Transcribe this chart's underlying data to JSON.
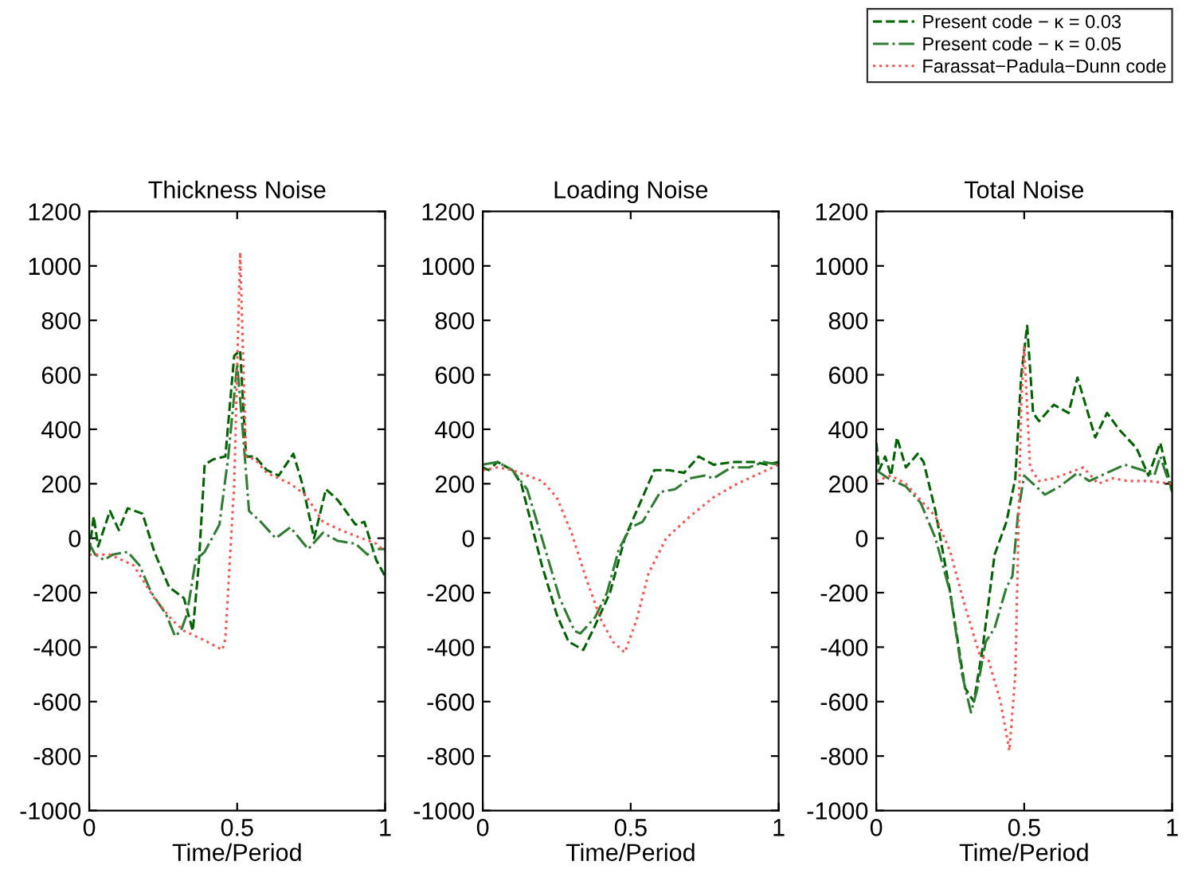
{
  "chart_data": [
    {
      "type": "line",
      "title": "Thickness Noise",
      "xlabel": "Time/Period",
      "xlim": [
        0,
        1
      ],
      "xticks": [
        0,
        0.5,
        1
      ],
      "ylim": [
        -1000,
        1200
      ],
      "yticks": [
        -1000,
        -800,
        -600,
        -400,
        -200,
        0,
        200,
        400,
        600,
        800,
        1000,
        1200
      ],
      "grid": false,
      "legend": "top right",
      "series": [
        {
          "name": "Present code − κ = 0.03",
          "color": "#006400",
          "line_style": "dashed",
          "x": [
            0,
            0.015,
            0.03,
            0.07,
            0.1,
            0.13,
            0.18,
            0.22,
            0.27,
            0.32,
            0.35,
            0.37,
            0.39,
            0.42,
            0.46,
            0.49,
            0.51,
            0.53,
            0.56,
            0.6,
            0.64,
            0.69,
            0.72,
            0.76,
            0.8,
            0.84,
            0.9,
            0.93,
            0.97,
            1.0
          ],
          "values": [
            -50,
            80,
            -30,
            100,
            30,
            110,
            90,
            -50,
            -180,
            -220,
            -340,
            -100,
            270,
            290,
            300,
            670,
            690,
            300,
            300,
            250,
            230,
            310,
            200,
            0,
            180,
            140,
            50,
            60,
            -80,
            -140
          ]
        },
        {
          "name": "Present code − κ = 0.05",
          "color": "#2e7d32",
          "line_style": "dashdot",
          "x": [
            0,
            0.02,
            0.05,
            0.08,
            0.13,
            0.17,
            0.21,
            0.26,
            0.29,
            0.31,
            0.33,
            0.36,
            0.39,
            0.44,
            0.47,
            0.5,
            0.52,
            0.54,
            0.58,
            0.63,
            0.68,
            0.74,
            0.79,
            0.84,
            0.9,
            0.94,
            0.97,
            1.0
          ],
          "values": [
            -20,
            -60,
            -80,
            -60,
            -50,
            -100,
            -200,
            -280,
            -360,
            -340,
            -280,
            -80,
            -50,
            50,
            300,
            640,
            380,
            100,
            60,
            0,
            40,
            -40,
            20,
            -10,
            -20,
            -60,
            -40,
            -40
          ]
        },
        {
          "name": "Farassat−Padula−Dunn code",
          "color": "#ff5050",
          "line_style": "dotted",
          "x": [
            0,
            0.07,
            0.15,
            0.22,
            0.28,
            0.32,
            0.38,
            0.45,
            0.46,
            0.49,
            0.51,
            0.53,
            0.56,
            0.6,
            0.68,
            0.73,
            0.79,
            0.85,
            0.92,
            0.97,
            1.0
          ],
          "values": [
            -60,
            -60,
            -100,
            -220,
            -300,
            -340,
            -370,
            -410,
            -370,
            200,
            1050,
            300,
            290,
            240,
            200,
            160,
            60,
            30,
            0,
            -20,
            -50
          ]
        }
      ]
    },
    {
      "type": "line",
      "title": "Loading Noise",
      "xlabel": "Time/Period",
      "xlim": [
        0,
        1
      ],
      "xticks": [
        0,
        0.5,
        1
      ],
      "ylim": [
        -1000,
        1200
      ],
      "yticks": [
        -1000,
        -800,
        -600,
        -400,
        -200,
        0,
        200,
        400,
        600,
        800,
        1000,
        1200
      ],
      "grid": false,
      "series": [
        {
          "color": "#006400",
          "line_style": "dashed",
          "x": [
            0,
            0.02,
            0.05,
            0.1,
            0.13,
            0.2,
            0.25,
            0.29,
            0.34,
            0.38,
            0.43,
            0.48,
            0.52,
            0.58,
            0.63,
            0.68,
            0.73,
            0.78,
            0.85,
            0.92,
            0.96,
            1.0
          ],
          "values": [
            260,
            250,
            280,
            250,
            200,
            -100,
            -280,
            -380,
            -410,
            -320,
            -200,
            0,
            100,
            250,
            250,
            240,
            300,
            270,
            280,
            280,
            270,
            280
          ]
        },
        {
          "color": "#2e7d32",
          "line_style": "dashdot",
          "x": [
            0,
            0.05,
            0.1,
            0.15,
            0.2,
            0.26,
            0.31,
            0.33,
            0.38,
            0.42,
            0.46,
            0.5,
            0.54,
            0.6,
            0.65,
            0.7,
            0.75,
            0.78,
            0.84,
            0.9,
            0.95,
            1.0
          ],
          "values": [
            270,
            280,
            250,
            180,
            0,
            -220,
            -340,
            -350,
            -290,
            -200,
            -40,
            40,
            60,
            170,
            180,
            220,
            230,
            220,
            260,
            260,
            280,
            270
          ]
        },
        {
          "color": "#ff5050",
          "line_style": "dotted",
          "x": [
            0,
            0.05,
            0.1,
            0.15,
            0.2,
            0.25,
            0.3,
            0.35,
            0.4,
            0.44,
            0.48,
            0.52,
            0.56,
            0.62,
            0.7,
            0.78,
            0.86,
            0.94,
            1.0
          ],
          "values": [
            250,
            260,
            250,
            230,
            210,
            150,
            20,
            -150,
            -300,
            -380,
            -420,
            -300,
            -130,
            0,
            80,
            150,
            200,
            240,
            270
          ]
        }
      ]
    },
    {
      "type": "line",
      "title": "Total Noise",
      "xlabel": "Time/Period",
      "xlim": [
        0,
        1
      ],
      "xticks": [
        0,
        0.5,
        1
      ],
      "ylim": [
        -1000,
        1200
      ],
      "yticks": [
        -1000,
        -800,
        -600,
        -400,
        -200,
        0,
        200,
        400,
        600,
        800,
        1000,
        1200
      ],
      "grid": false,
      "series": [
        {
          "color": "#006400",
          "line_style": "dashed",
          "x": [
            0,
            0.01,
            0.03,
            0.05,
            0.07,
            0.1,
            0.14,
            0.16,
            0.2,
            0.25,
            0.3,
            0.33,
            0.36,
            0.4,
            0.44,
            0.47,
            0.49,
            0.51,
            0.53,
            0.55,
            0.6,
            0.65,
            0.68,
            0.74,
            0.78,
            0.82,
            0.88,
            0.92,
            0.96,
            1.0
          ],
          "values": [
            350,
            250,
            300,
            230,
            370,
            260,
            310,
            280,
            100,
            -200,
            -550,
            -600,
            -400,
            -60,
            60,
            220,
            600,
            780,
            460,
            430,
            490,
            460,
            590,
            370,
            460,
            400,
            330,
            230,
            350,
            170
          ]
        },
        {
          "color": "#2e7d32",
          "line_style": "dashdot",
          "x": [
            0,
            0.04,
            0.1,
            0.15,
            0.2,
            0.25,
            0.29,
            0.32,
            0.34,
            0.37,
            0.4,
            0.44,
            0.46,
            0.48,
            0.5,
            0.53,
            0.57,
            0.62,
            0.68,
            0.72,
            0.78,
            0.84,
            0.9,
            0.94,
            0.96,
            1.0
          ],
          "values": [
            250,
            220,
            190,
            130,
            0,
            -200,
            -500,
            -640,
            -560,
            -380,
            -330,
            -180,
            -140,
            100,
            230,
            200,
            160,
            190,
            240,
            210,
            240,
            270,
            250,
            230,
            300,
            170
          ]
        },
        {
          "color": "#ff5050",
          "line_style": "dotted",
          "x": [
            0,
            0.05,
            0.1,
            0.15,
            0.2,
            0.25,
            0.3,
            0.35,
            0.38,
            0.42,
            0.45,
            0.47,
            0.49,
            0.5,
            0.52,
            0.55,
            0.6,
            0.65,
            0.7,
            0.75,
            0.8,
            0.85,
            0.92,
            1.0
          ],
          "values": [
            210,
            230,
            200,
            140,
            80,
            -50,
            -250,
            -430,
            -450,
            -600,
            -780,
            -500,
            500,
            700,
            260,
            210,
            220,
            240,
            260,
            200,
            220,
            210,
            210,
            200
          ]
        }
      ]
    }
  ]
}
